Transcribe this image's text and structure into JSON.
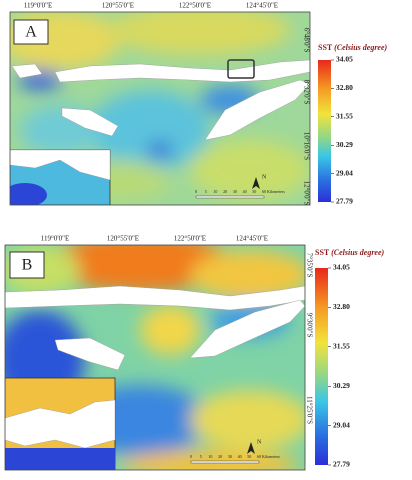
{
  "panels": [
    {
      "label": "A",
      "top_labels": [
        "119°0'0\"E",
        "120°55'0\"E",
        "122°50'0\"E",
        "124°45'0\"E"
      ],
      "right_labels": [
        "6°48'0\"S",
        "8°32'0\"S",
        "10°16'0\"S",
        "12°0'0\"S"
      ],
      "legend": {
        "title": "SST",
        "title_unit": "(Celsius degree)",
        "ticks": [
          34.05,
          32.8,
          31.55,
          30.29,
          29.04,
          27.79
        ]
      },
      "north": "N",
      "scale_labels": [
        "0",
        "5",
        "10",
        "20",
        "30",
        "40",
        "50",
        "60"
      ],
      "scale_unit": "Kilometers"
    },
    {
      "label": "B",
      "top_labels": [
        "119°0'0\"E",
        "120°55'0\"E",
        "122°50'0\"E",
        "124°45'0\"E"
      ],
      "right_labels": [
        "7°35'0\"S",
        "9°30'0\"S",
        "11°25'0\"S"
      ],
      "legend": {
        "title": "SST",
        "title_unit": "(Celsius degree)",
        "ticks": [
          34.05,
          32.8,
          31.55,
          30.29,
          29.04,
          27.79
        ]
      },
      "north": "N",
      "scale_labels": [
        "0",
        "5",
        "10",
        "20",
        "30",
        "40",
        "50",
        "60"
      ],
      "scale_unit": "Kilometers"
    }
  ]
}
